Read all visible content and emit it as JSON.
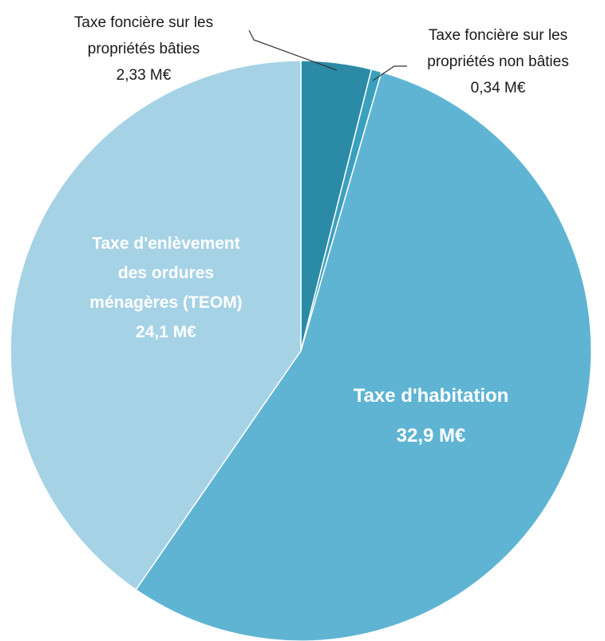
{
  "chart_data": {
    "type": "pie",
    "categories": [
      "Taxe foncière sur les propriétés bâties",
      "Taxe foncière sur les propriétés non bâties",
      "Taxe d'habitation",
      "Taxe d'enlèvement des ordures ménagères (TEOM)"
    ],
    "values": [
      2.33,
      0.34,
      32.9,
      24.1
    ],
    "value_labels": [
      "2,33 M€",
      "0,34 M€",
      "32,9 M€",
      "24,1 M€"
    ],
    "colors": [
      "#2b8aa6",
      "#3aa0bd",
      "#5fb4d3",
      "#a6d2e6"
    ]
  }
}
